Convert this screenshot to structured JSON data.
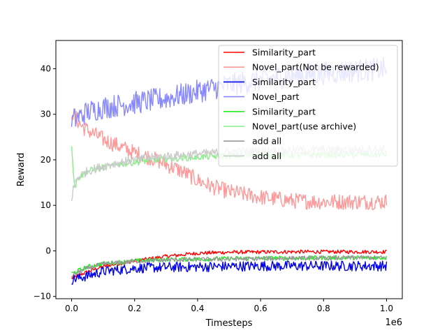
{
  "chart_data": {
    "type": "line",
    "xlabel": "Timesteps",
    "ylabel": "Reward",
    "x_offset_label": "1e6",
    "xlim": [
      -0.05,
      1.05
    ],
    "ylim": [
      -10.5,
      46.2
    ],
    "x_ticks": [
      0.0,
      0.2,
      0.4,
      0.6,
      0.8,
      1.0
    ],
    "x_tick_labels": [
      "0.0",
      "0.2",
      "0.4",
      "0.6",
      "0.8",
      "1.0"
    ],
    "y_ticks": [
      -10,
      0,
      10,
      20,
      30,
      40
    ],
    "y_tick_labels": [
      "−10",
      "0",
      "10",
      "20",
      "30",
      "40"
    ],
    "grid": false,
    "legend_position": "upper-right",
    "series": [
      {
        "name": "Similarity_part",
        "color": "#ff0000",
        "noise": 0.25,
        "x": [
          0,
          0.05,
          0.1,
          0.2,
          0.3,
          0.4,
          0.5,
          0.6,
          0.7,
          0.8,
          0.9,
          1.0
        ],
        "y": [
          -6.0,
          -4.6,
          -3.4,
          -2.2,
          -1.2,
          -0.5,
          -0.3,
          -0.25,
          -0.2,
          -0.2,
          -0.2,
          -0.2
        ]
      },
      {
        "name": "Novel_part(Not be rewarded)",
        "color": "#ff9999",
        "noise": 1.1,
        "x": [
          0,
          0.03,
          0.05,
          0.1,
          0.15,
          0.2,
          0.25,
          0.3,
          0.35,
          0.4,
          0.45,
          0.5,
          0.6,
          0.7,
          0.8,
          0.9,
          1.0
        ],
        "y": [
          30.5,
          27.5,
          26.5,
          24.5,
          23.0,
          21.5,
          20.5,
          19.0,
          17.5,
          15.5,
          14.0,
          13.0,
          11.8,
          11.0,
          10.8,
          10.8,
          10.8
        ]
      },
      {
        "name": "Similarity_part",
        "color": "#0000ee",
        "noise": 0.7,
        "x": [
          0,
          0.05,
          0.1,
          0.2,
          0.3,
          0.4,
          0.5,
          0.6,
          0.7,
          0.8,
          0.9,
          1.0
        ],
        "y": [
          -6.3,
          -5.5,
          -4.5,
          -3.8,
          -3.6,
          -3.5,
          -3.4,
          -3.3,
          -3.3,
          -3.3,
          -3.3,
          -3.3
        ]
      },
      {
        "name": "Novel_part",
        "color": "#8888ff",
        "noise": 1.6,
        "x": [
          0,
          0.05,
          0.1,
          0.2,
          0.3,
          0.4,
          0.5,
          0.6,
          0.7,
          0.8,
          0.9,
          1.0
        ],
        "y": [
          28.5,
          30.5,
          31.5,
          32.5,
          33.5,
          35.0,
          36.5,
          37.5,
          38.5,
          39.0,
          39.5,
          40.0
        ]
      },
      {
        "name": "Similarity_part",
        "color": "#22ee22",
        "noise": 0.3,
        "x": [
          0,
          0.05,
          0.1,
          0.2,
          0.3,
          0.4,
          0.5,
          0.6,
          0.7,
          0.8,
          0.9,
          1.0
        ],
        "y": [
          -5.0,
          -3.5,
          -2.8,
          -2.2,
          -1.9,
          -1.8,
          -1.7,
          -1.6,
          -1.6,
          -1.5,
          -1.5,
          -1.5
        ]
      },
      {
        "name": "Novel_part(use archive)",
        "color": "#88ee88",
        "noise": 0.45,
        "x": [
          0,
          0.005,
          0.01,
          0.02,
          0.05,
          0.1,
          0.15,
          0.2,
          0.3,
          0.4,
          0.5,
          0.6,
          0.8,
          1.0
        ],
        "y": [
          23.5,
          18.0,
          14.0,
          16.0,
          17.5,
          18.3,
          19.0,
          19.5,
          20.2,
          20.6,
          20.9,
          21.0,
          21.1,
          21.2
        ]
      },
      {
        "name": "add all",
        "color": "#999999",
        "noise": 0.3,
        "x": [
          0,
          0.05,
          0.1,
          0.2,
          0.3,
          0.4,
          0.5,
          0.6,
          0.7,
          0.8,
          0.9,
          1.0
        ],
        "y": [
          -5.5,
          -3.8,
          -2.9,
          -2.3,
          -2.0,
          -1.9,
          -1.8,
          -1.7,
          -1.6,
          -1.6,
          -1.5,
          -1.5
        ]
      },
      {
        "name": "add all",
        "color": "#cccccc",
        "noise": 0.6,
        "x": [
          0,
          0.005,
          0.01,
          0.02,
          0.05,
          0.1,
          0.15,
          0.2,
          0.3,
          0.4,
          0.5,
          0.6,
          0.8,
          1.0
        ],
        "y": [
          10.5,
          13.5,
          15.0,
          16.2,
          17.5,
          18.6,
          19.4,
          20.0,
          20.8,
          21.3,
          21.7,
          22.0,
          22.2,
          22.3
        ]
      }
    ]
  }
}
